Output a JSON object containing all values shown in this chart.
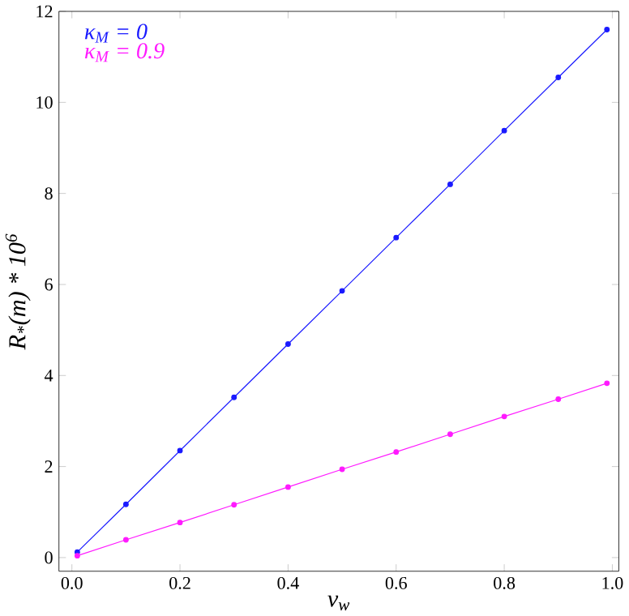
{
  "chart_data": {
    "type": "line",
    "xlabel": "v$_{w}$",
    "ylabel": "R$_{*}$(m) * 10$^{6}$",
    "xlim": [
      -0.024,
      1.012
    ],
    "ylim": [
      -0.3,
      12.0
    ],
    "xticks": [
      {
        "value": 0,
        "label": "0.0"
      },
      0.2,
      0.4,
      0.6,
      0.8,
      {
        "value": 1,
        "label": "1.0"
      }
    ],
    "yticks": [
      0,
      2,
      4,
      6,
      8,
      10,
      12
    ],
    "marker": "circle",
    "legend": "top left",
    "grid": false,
    "series": [
      {
        "name": "κ$_{M}$ = 0",
        "color": "#1a1aff",
        "x": [
          0.01,
          0.1,
          0.2,
          0.3,
          0.4,
          0.5,
          0.6,
          0.7,
          0.8,
          0.9,
          0.99
        ],
        "values": [
          0.12,
          1.17,
          2.35,
          3.52,
          4.69,
          5.86,
          7.03,
          8.2,
          9.38,
          10.55,
          11.6
        ]
      },
      {
        "name": "κ$_{M}$ = 0.9",
        "color": "#ff1aff",
        "x": [
          0.01,
          0.1,
          0.2,
          0.3,
          0.4,
          0.5,
          0.6,
          0.7,
          0.8,
          0.9,
          0.99
        ],
        "values": [
          0.04,
          0.39,
          0.77,
          1.16,
          1.55,
          1.94,
          2.32,
          2.71,
          3.1,
          3.48,
          3.83
        ]
      }
    ]
  }
}
